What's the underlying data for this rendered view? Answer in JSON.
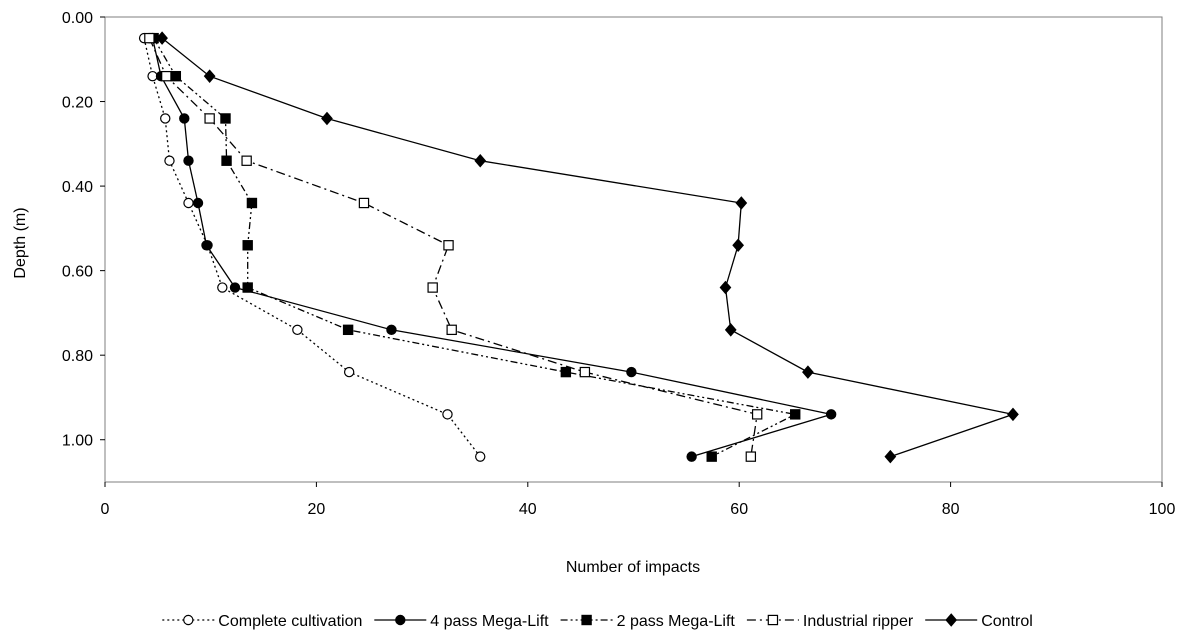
{
  "chart_data": {
    "type": "line",
    "xlabel": "Number of impacts",
    "ylabel": "Depth (m)",
    "xlim": [
      0,
      100
    ],
    "ylim": [
      0,
      1.1
    ],
    "y_inverted": true,
    "x_ticks": [
      0,
      20,
      40,
      60,
      80,
      100
    ],
    "x_tick_labels": [
      "0",
      "20",
      "40",
      "60",
      "80",
      "100"
    ],
    "y_ticks": [
      0,
      0.2,
      0.4,
      0.6,
      0.8,
      1.0
    ],
    "y_tick_labels": [
      "0.00",
      "0.20",
      "0.40",
      "0.60",
      "0.80",
      "1.00"
    ],
    "grid": false,
    "legend_position": "bottom",
    "series": [
      {
        "name": "Complete cultivation",
        "marker": "open-circle",
        "line_style": "dotted",
        "color": "#000000",
        "x": [
          3.7,
          4.5,
          5.7,
          6.1,
          7.9,
          9.7,
          11.1,
          18.2,
          23.1,
          32.4,
          35.5
        ],
        "y": [
          0.05,
          0.14,
          0.24,
          0.34,
          0.44,
          0.54,
          0.64,
          0.74,
          0.84,
          0.94,
          1.04
        ]
      },
      {
        "name": "4 pass Mega-Lift",
        "marker": "filled-circle",
        "line_style": "solid",
        "color": "#000000",
        "x": [
          4.5,
          5.3,
          7.5,
          7.9,
          8.8,
          9.6,
          12.3,
          27.1,
          49.8,
          68.7,
          55.5
        ],
        "y": [
          0.05,
          0.14,
          0.24,
          0.34,
          0.44,
          0.54,
          0.64,
          0.74,
          0.84,
          0.94,
          1.04
        ]
      },
      {
        "name": "2 pass Mega-Lift",
        "marker": "filled-square",
        "line_style": "dash-dot-dot",
        "color": "#000000",
        "x": [
          4.6,
          6.7,
          11.4,
          11.5,
          13.9,
          13.5,
          13.5,
          23.0,
          43.6,
          65.3,
          57.4
        ],
        "y": [
          0.05,
          0.14,
          0.24,
          0.34,
          0.44,
          0.54,
          0.64,
          0.74,
          0.84,
          0.94,
          1.04
        ]
      },
      {
        "name": "Industrial ripper",
        "marker": "open-square",
        "line_style": "dash-dot",
        "color": "#000000",
        "x": [
          4.2,
          5.8,
          9.9,
          13.4,
          24.5,
          32.5,
          31.0,
          32.8,
          45.4,
          61.7,
          61.1
        ],
        "y": [
          0.05,
          0.14,
          0.24,
          0.34,
          0.44,
          0.54,
          0.64,
          0.74,
          0.84,
          0.94,
          1.04
        ]
      },
      {
        "name": "Control",
        "marker": "filled-diamond",
        "line_style": "solid",
        "color": "#000000",
        "x": [
          5.4,
          9.9,
          21.0,
          35.5,
          60.2,
          59.9,
          58.7,
          59.2,
          66.5,
          85.9,
          74.3
        ],
        "y": [
          0.05,
          0.14,
          0.24,
          0.34,
          0.44,
          0.54,
          0.64,
          0.74,
          0.84,
          0.94,
          1.04
        ]
      }
    ]
  }
}
